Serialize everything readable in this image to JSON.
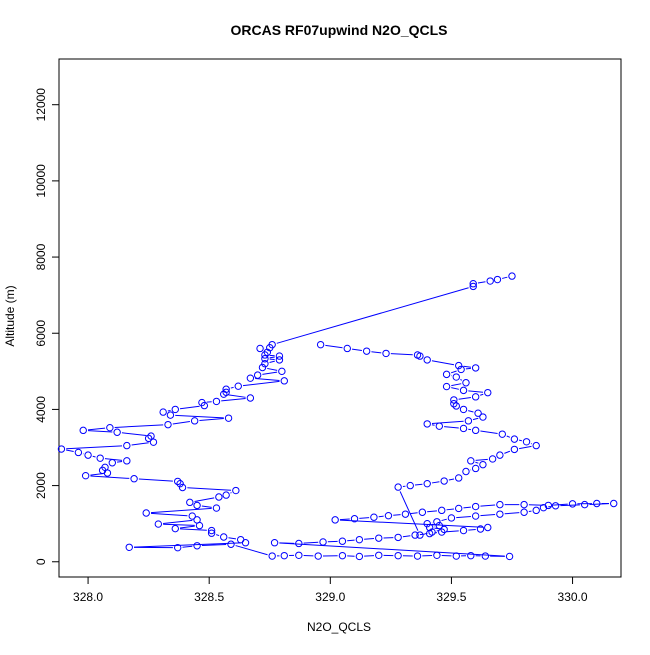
{
  "colors": {
    "series": "#0000ff",
    "axis": "#000000",
    "background": "#ffffff"
  },
  "chart_data": {
    "type": "line",
    "title": "ORCAS RF07upwind N2O_QCLS",
    "xlabel": "N2O_QCLS",
    "ylabel": "Altitude (m)",
    "xlim": [
      327.88,
      330.2
    ],
    "ylim": [
      -400,
      13200
    ],
    "xticks": [
      328.0,
      328.5,
      329.0,
      329.5,
      330.0
    ],
    "xtick_labels": [
      "328.0",
      "328.5",
      "329.0",
      "329.5",
      "330.0"
    ],
    "yticks": [
      0,
      2000,
      4000,
      6000,
      8000,
      10000,
      12000
    ],
    "ytick_labels": [
      "0",
      "2000",
      "4000",
      "6000",
      "8000",
      "10000",
      "12000"
    ],
    "marker": "open-circle",
    "line_style": "solid-with-gaps",
    "grid": false,
    "series": [
      {
        "points": [
          [
            329.75,
            7500
          ],
          [
            329.69,
            7410
          ],
          [
            329.66,
            7370
          ],
          [
            329.59,
            7300
          ],
          [
            329.59,
            7230
          ],
          [
            328.76,
            5700
          ],
          [
            328.75,
            5620
          ],
          [
            328.71,
            5600
          ],
          [
            328.74,
            5500
          ],
          [
            328.73,
            5430
          ],
          [
            328.79,
            5400
          ],
          [
            328.73,
            5330
          ],
          [
            328.79,
            5300
          ],
          [
            328.73,
            5200
          ],
          [
            328.72,
            5100
          ],
          [
            328.8,
            5000
          ],
          [
            328.7,
            4900
          ],
          [
            328.67,
            4820
          ],
          [
            328.81,
            4750
          ],
          [
            328.62,
            4610
          ],
          [
            328.57,
            4530
          ],
          [
            328.57,
            4450
          ],
          [
            328.56,
            4400
          ],
          [
            328.67,
            4300
          ],
          [
            328.53,
            4210
          ],
          [
            328.47,
            4180
          ],
          [
            328.48,
            4100
          ],
          [
            328.36,
            4000
          ],
          [
            328.31,
            3930
          ],
          [
            328.34,
            3850
          ],
          [
            328.58,
            3770
          ],
          [
            328.44,
            3700
          ],
          [
            328.33,
            3600
          ],
          [
            328.09,
            3520
          ],
          [
            327.98,
            3450
          ],
          [
            328.12,
            3400
          ],
          [
            328.26,
            3300
          ],
          [
            328.25,
            3240
          ],
          [
            328.27,
            3140
          ],
          [
            328.16,
            3050
          ],
          [
            327.89,
            2960
          ],
          [
            327.96,
            2870
          ],
          [
            328.0,
            2800
          ],
          [
            328.05,
            2720
          ],
          [
            328.16,
            2650
          ],
          [
            328.1,
            2600
          ],
          [
            328.07,
            2480
          ],
          [
            328.06,
            2400
          ],
          [
            328.08,
            2330
          ],
          [
            327.99,
            2260
          ],
          [
            328.19,
            2180
          ],
          [
            328.37,
            2110
          ],
          [
            328.38,
            2050
          ],
          [
            328.39,
            1950
          ],
          [
            328.61,
            1870
          ],
          [
            328.57,
            1750
          ],
          [
            328.54,
            1700
          ],
          [
            328.42,
            1560
          ],
          [
            328.45,
            1480
          ],
          [
            328.53,
            1410
          ],
          [
            328.24,
            1280
          ],
          [
            328.43,
            1200
          ],
          [
            328.45,
            1100
          ],
          [
            328.29,
            990
          ],
          [
            328.46,
            950
          ],
          [
            328.36,
            870
          ],
          [
            328.51,
            820
          ],
          [
            328.51,
            750
          ],
          [
            328.56,
            650
          ],
          [
            328.63,
            580
          ],
          [
            328.65,
            500
          ],
          [
            328.17,
            380
          ],
          [
            328.37,
            370
          ],
          [
            328.45,
            420
          ],
          [
            328.59,
            460
          ],
          [
            328.76,
            150
          ],
          [
            328.81,
            160
          ],
          [
            328.87,
            170
          ],
          [
            328.95,
            150
          ],
          [
            329.05,
            160
          ],
          [
            329.12,
            140
          ],
          [
            329.2,
            170
          ],
          [
            329.28,
            160
          ],
          [
            329.36,
            150
          ],
          [
            329.44,
            170
          ],
          [
            329.52,
            150
          ],
          [
            329.58,
            160
          ],
          [
            329.64,
            150
          ],
          [
            329.74,
            140
          ],
          [
            328.77,
            500
          ],
          [
            328.87,
            480
          ],
          [
            328.97,
            520
          ],
          [
            329.05,
            540
          ],
          [
            329.12,
            580
          ],
          [
            329.2,
            620
          ],
          [
            329.28,
            640
          ],
          [
            329.35,
            700
          ],
          [
            329.41,
            740
          ],
          [
            329.46,
            780
          ],
          [
            329.55,
            820
          ],
          [
            329.62,
            860
          ],
          [
            329.65,
            900
          ],
          [
            329.02,
            1100
          ],
          [
            329.1,
            1130
          ],
          [
            329.18,
            1170
          ],
          [
            329.24,
            1210
          ],
          [
            329.31,
            1250
          ],
          [
            329.38,
            1300
          ],
          [
            329.46,
            1350
          ],
          [
            329.53,
            1400
          ],
          [
            329.6,
            1450
          ],
          [
            329.7,
            1500
          ],
          [
            329.8,
            1500
          ],
          [
            329.9,
            1480
          ],
          [
            330.0,
            1520
          ],
          [
            330.1,
            1530
          ],
          [
            330.17,
            1530
          ],
          [
            330.05,
            1500
          ],
          [
            329.93,
            1470
          ],
          [
            329.88,
            1420
          ],
          [
            329.85,
            1350
          ],
          [
            329.8,
            1300
          ],
          [
            329.7,
            1250
          ],
          [
            329.6,
            1200
          ],
          [
            329.5,
            1150
          ],
          [
            329.44,
            1050
          ],
          [
            329.4,
            1000
          ],
          [
            329.45,
            950
          ],
          [
            329.41,
            900
          ],
          [
            329.47,
            850
          ],
          [
            329.42,
            780
          ],
          [
            329.37,
            700
          ],
          [
            329.28,
            1960
          ],
          [
            329.33,
            2000
          ],
          [
            329.4,
            2050
          ],
          [
            329.47,
            2120
          ],
          [
            329.53,
            2200
          ],
          [
            329.56,
            2370
          ],
          [
            329.6,
            2450
          ],
          [
            329.63,
            2550
          ],
          [
            329.58,
            2650
          ],
          [
            329.67,
            2700
          ],
          [
            329.7,
            2800
          ],
          [
            329.76,
            2950
          ],
          [
            329.85,
            3050
          ],
          [
            329.81,
            3150
          ],
          [
            329.76,
            3220
          ],
          [
            329.71,
            3350
          ],
          [
            329.6,
            3450
          ],
          [
            329.55,
            3500
          ],
          [
            329.45,
            3560
          ],
          [
            329.4,
            3620
          ],
          [
            329.57,
            3700
          ],
          [
            329.63,
            3800
          ],
          [
            329.61,
            3900
          ],
          [
            329.55,
            4000
          ],
          [
            329.52,
            4090
          ],
          [
            329.51,
            4150
          ],
          [
            329.51,
            4250
          ],
          [
            329.6,
            4330
          ],
          [
            329.65,
            4440
          ],
          [
            329.55,
            4500
          ],
          [
            329.48,
            4600
          ],
          [
            329.56,
            4700
          ],
          [
            329.52,
            4850
          ],
          [
            329.48,
            4920
          ],
          [
            329.54,
            5050
          ],
          [
            329.6,
            5090
          ],
          [
            329.53,
            5150
          ],
          [
            329.4,
            5300
          ],
          [
            329.37,
            5400
          ],
          [
            329.36,
            5430
          ],
          [
            329.23,
            5470
          ],
          [
            329.15,
            5530
          ],
          [
            329.07,
            5600
          ],
          [
            328.96,
            5700
          ]
        ]
      }
    ]
  }
}
